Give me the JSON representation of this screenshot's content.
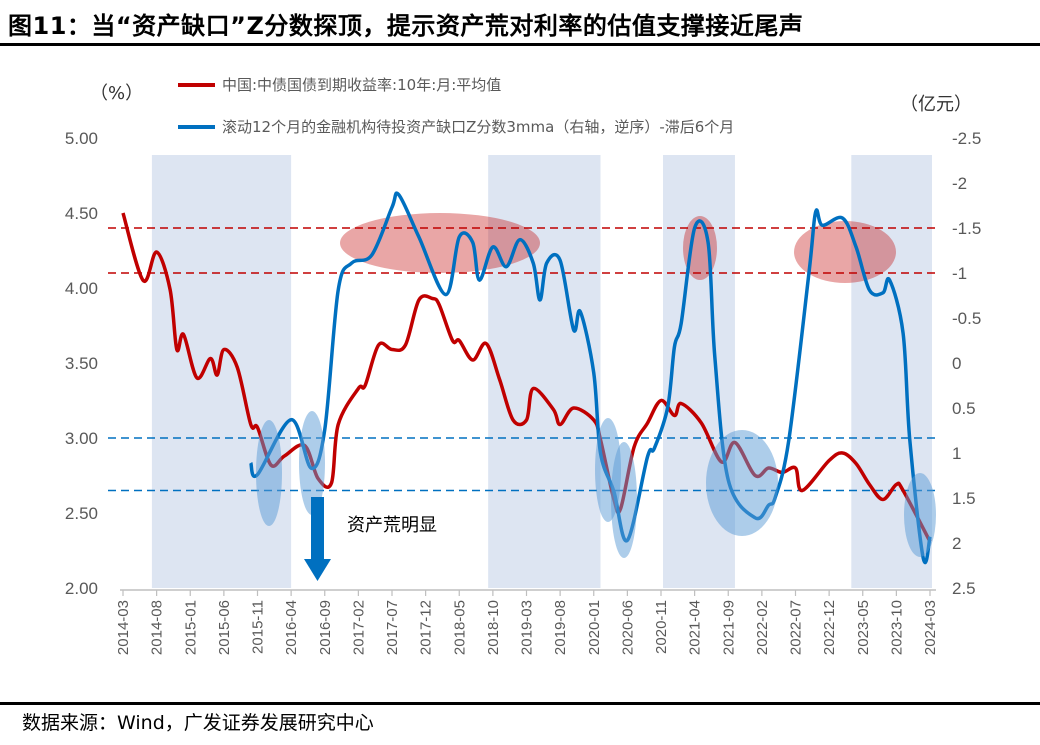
{
  "title": "图11：当“资产缺口”Z分数探顶，提示资产荒对利率的估值支撑接近尾声",
  "source": "数据来源：Wind，广发证券发展研究中心",
  "chart_data": {
    "type": "line",
    "left_unit": "（%）",
    "right_unit": "（亿元）",
    "left_axis": {
      "min": 2.0,
      "max": 5.0,
      "ticks": [
        "5.00",
        "4.50",
        "4.00",
        "3.50",
        "3.00",
        "2.50",
        "2.00"
      ]
    },
    "right_axis": {
      "min": -2.5,
      "max": 2.5,
      "reversed": true,
      "ticks": [
        "-2.5",
        "-2",
        "-1.5",
        "-1",
        "-0.5",
        "0",
        "0.5",
        "1",
        "1.5",
        "2",
        "2.5"
      ]
    },
    "x_ticks": [
      "2014-03",
      "2014-08",
      "2015-01",
      "2015-06",
      "2015-11",
      "2016-04",
      "2016-09",
      "2017-02",
      "2017-07",
      "2017-12",
      "2018-05",
      "2018-10",
      "2019-03",
      "2019-08",
      "2020-01",
      "2020-06",
      "2020-11",
      "2021-04",
      "2021-09",
      "2022-02",
      "2022-07",
      "2022-12",
      "2023-05",
      "2023-10",
      "2024-03"
    ],
    "grid": false,
    "legend_placement": "top",
    "series": [
      {
        "name": "中国:中债国债到期收益率:10年:月:平均值",
        "axis": "left",
        "color": "#C00000",
        "points": [
          [
            "2014-03",
            4.5
          ],
          [
            "2014-06",
            4.05
          ],
          [
            "2014-08",
            4.24
          ],
          [
            "2014-10",
            3.99
          ],
          [
            "2014-11",
            3.59
          ],
          [
            "2014-12",
            3.69
          ],
          [
            "2015-02",
            3.4
          ],
          [
            "2015-04",
            3.53
          ],
          [
            "2015-05",
            3.42
          ],
          [
            "2015-06",
            3.59
          ],
          [
            "2015-08",
            3.47
          ],
          [
            "2015-10",
            3.09
          ],
          [
            "2015-11",
            3.07
          ],
          [
            "2016-01",
            2.82
          ],
          [
            "2016-03",
            2.88
          ],
          [
            "2016-06",
            2.95
          ],
          [
            "2016-08",
            2.73
          ],
          [
            "2016-10",
            2.7
          ],
          [
            "2016-11",
            3.09
          ],
          [
            "2017-02",
            3.33
          ],
          [
            "2017-03",
            3.35
          ],
          [
            "2017-05",
            3.62
          ],
          [
            "2017-07",
            3.59
          ],
          [
            "2017-09",
            3.62
          ],
          [
            "2017-11",
            3.92
          ],
          [
            "2018-01",
            3.93
          ],
          [
            "2018-02",
            3.89
          ],
          [
            "2018-04",
            3.65
          ],
          [
            "2018-05",
            3.65
          ],
          [
            "2018-07",
            3.52
          ],
          [
            "2018-09",
            3.63
          ],
          [
            "2018-11",
            3.39
          ],
          [
            "2019-01",
            3.12
          ],
          [
            "2019-03",
            3.12
          ],
          [
            "2019-04",
            3.33
          ],
          [
            "2019-07",
            3.19
          ],
          [
            "2019-08",
            3.09
          ],
          [
            "2019-10",
            3.2
          ],
          [
            "2020-01",
            3.12
          ],
          [
            "2020-02",
            2.99
          ],
          [
            "2020-04",
            2.59
          ],
          [
            "2020-05",
            2.53
          ],
          [
            "2020-07",
            2.94
          ],
          [
            "2020-09",
            3.1
          ],
          [
            "2020-11",
            3.25
          ],
          [
            "2021-01",
            3.15
          ],
          [
            "2021-02",
            3.23
          ],
          [
            "2021-05",
            3.1
          ],
          [
            "2021-08",
            2.84
          ],
          [
            "2021-10",
            2.97
          ],
          [
            "2022-01",
            2.75
          ],
          [
            "2022-03",
            2.8
          ],
          [
            "2022-05",
            2.77
          ],
          [
            "2022-07",
            2.8
          ],
          [
            "2022-08",
            2.65
          ],
          [
            "2022-12",
            2.85
          ],
          [
            "2023-02",
            2.9
          ],
          [
            "2023-04",
            2.83
          ],
          [
            "2023-06",
            2.69
          ],
          [
            "2023-08",
            2.59
          ],
          [
            "2023-10",
            2.69
          ],
          [
            "2023-11",
            2.65
          ],
          [
            "2024-03",
            2.31
          ]
        ]
      },
      {
        "name": "滚动12个月的金融机构待投资产缺口Z分数3mma（右轴，逆序）-滞后6个月",
        "axis": "right",
        "color": "#0070C0",
        "points": [
          [
            "2015-10",
            1.11
          ],
          [
            "2015-11",
            1.24
          ],
          [
            "2016-04",
            0.63
          ],
          [
            "2016-07",
            1.17
          ],
          [
            "2016-09",
            0.74
          ],
          [
            "2016-11",
            -0.81
          ],
          [
            "2017-01",
            -1.11
          ],
          [
            "2017-04",
            -1.2
          ],
          [
            "2017-07",
            -1.73
          ],
          [
            "2017-08",
            -1.87
          ],
          [
            "2017-11",
            -1.4
          ],
          [
            "2018-03",
            -0.76
          ],
          [
            "2018-05",
            -1.4
          ],
          [
            "2018-07",
            -1.34
          ],
          [
            "2018-08",
            -0.92
          ],
          [
            "2018-10",
            -1.29
          ],
          [
            "2018-12",
            -1.07
          ],
          [
            "2019-02",
            -1.37
          ],
          [
            "2019-04",
            -1.11
          ],
          [
            "2019-05",
            -0.7
          ],
          [
            "2019-06",
            -1.11
          ],
          [
            "2019-08",
            -1.14
          ],
          [
            "2019-10",
            -0.37
          ],
          [
            "2019-11",
            -0.57
          ],
          [
            "2020-01",
            0.11
          ],
          [
            "2020-02",
            1.0
          ],
          [
            "2020-04",
            1.43
          ],
          [
            "2020-06",
            1.97
          ],
          [
            "2020-09",
            1.04
          ],
          [
            "2020-10",
            0.95
          ],
          [
            "2020-12",
            0.49
          ],
          [
            "2021-01",
            -0.18
          ],
          [
            "2021-02",
            -0.44
          ],
          [
            "2021-04",
            -1.5
          ],
          [
            "2021-06",
            -1.34
          ],
          [
            "2021-07",
            -0.07
          ],
          [
            "2021-09",
            1.3
          ],
          [
            "2022-01",
            1.72
          ],
          [
            "2022-03",
            1.58
          ],
          [
            "2022-04",
            1.49
          ],
          [
            "2022-06",
            0.86
          ],
          [
            "2022-09",
            -1.0
          ],
          [
            "2022-10",
            -1.68
          ],
          [
            "2022-11",
            -1.53
          ],
          [
            "2023-02",
            -1.61
          ],
          [
            "2023-04",
            -1.29
          ],
          [
            "2023-06",
            -0.81
          ],
          [
            "2023-08",
            -0.78
          ],
          [
            "2023-09",
            -0.92
          ],
          [
            "2023-11",
            -0.33
          ],
          [
            "2023-12",
            0.86
          ],
          [
            "2024-02",
            2.17
          ],
          [
            "2024-03",
            1.93
          ]
        ]
      }
    ],
    "shaded_periods": [
      [
        "2014-07",
        "2016-04"
      ],
      [
        "2018-09",
        "2020-02"
      ],
      [
        "2020-11",
        "2021-10"
      ],
      [
        "2023-03",
        "2024-03"
      ]
    ],
    "reference_lines": [
      {
        "axis": "right",
        "value": -1.5,
        "color": "#C00000"
      },
      {
        "axis": "right",
        "value": -1.0,
        "color": "#C00000"
      },
      {
        "axis": "left",
        "value": 3.0,
        "color": "#0070C0"
      },
      {
        "axis": "left",
        "value": 2.65,
        "color": "#0070C0"
      }
    ],
    "annotation": "资产荒明显"
  }
}
